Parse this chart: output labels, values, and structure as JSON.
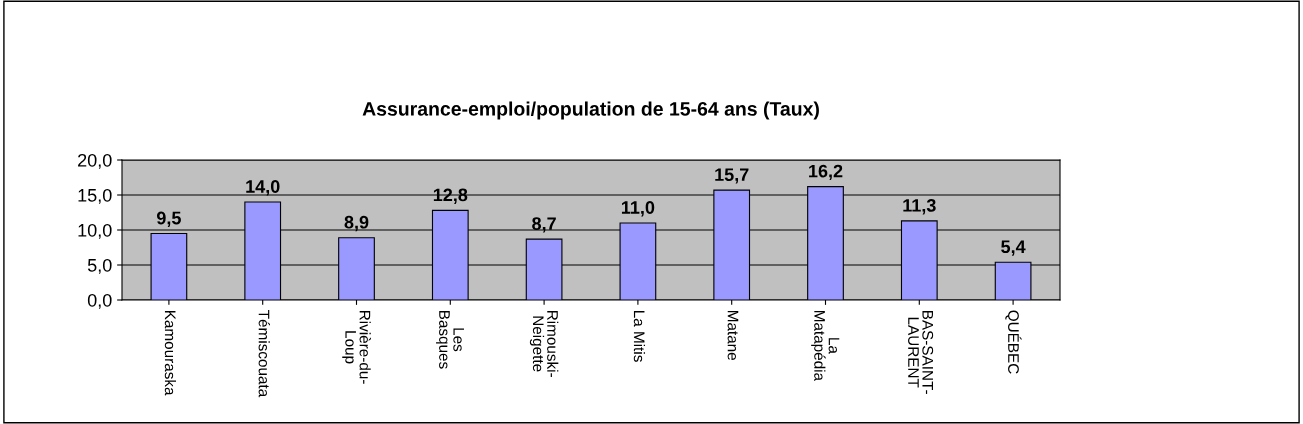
{
  "chart_data": {
    "type": "bar",
    "title": "Assurance-emploi/population de 15-64 ans (Taux)",
    "categories": [
      "Kamouraska",
      "Témiscouata",
      "Rivière-du-\nLoup",
      "Les\nBasques",
      "Rimouski-\nNeigette",
      "La Mitis",
      "Matane",
      "La\nMatapédia",
      "BAS-SAINT-\nLAURENT",
      "QUÉBEC"
    ],
    "values": [
      9.5,
      14.0,
      8.9,
      12.8,
      8.7,
      11.0,
      15.7,
      16.2,
      11.3,
      5.4
    ],
    "value_labels": [
      "9,5",
      "14,0",
      "8,9",
      "12,8",
      "8,7",
      "11,0",
      "15,7",
      "16,2",
      "11,3",
      "5,4"
    ],
    "color": "#9999ff",
    "ylim": [
      0,
      20
    ],
    "yticks": [
      {
        "value": 0,
        "label": "0,0"
      },
      {
        "value": 5,
        "label": "5,0"
      },
      {
        "value": 10,
        "label": "10,0"
      },
      {
        "value": 15,
        "label": "15,0"
      },
      {
        "value": 20,
        "label": "20,0"
      }
    ],
    "grid": "y",
    "legend": false
  }
}
